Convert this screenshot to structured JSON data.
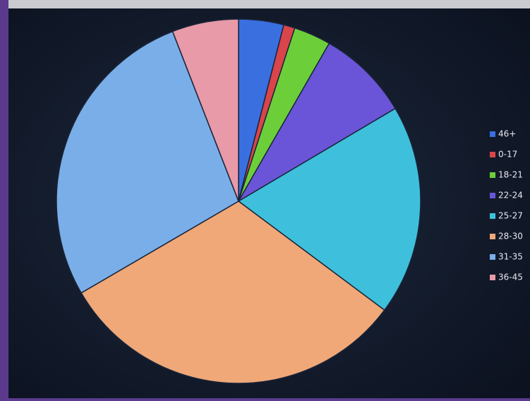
{
  "chart_data": {
    "type": "pie",
    "categories": [
      "46+",
      "0-17",
      "18-21",
      "22-24",
      "25-27",
      "28-30",
      "31-35",
      "36-45"
    ],
    "values": [
      4,
      1,
      3.3,
      8.2,
      18.7,
      31.4,
      27.5,
      5.9
    ],
    "colors": [
      "#3a6fe0",
      "#d9454a",
      "#6ccf3a",
      "#6a55d8",
      "#3ec0dc",
      "#f0a878",
      "#7aaee8",
      "#e89aa8"
    ]
  }
}
